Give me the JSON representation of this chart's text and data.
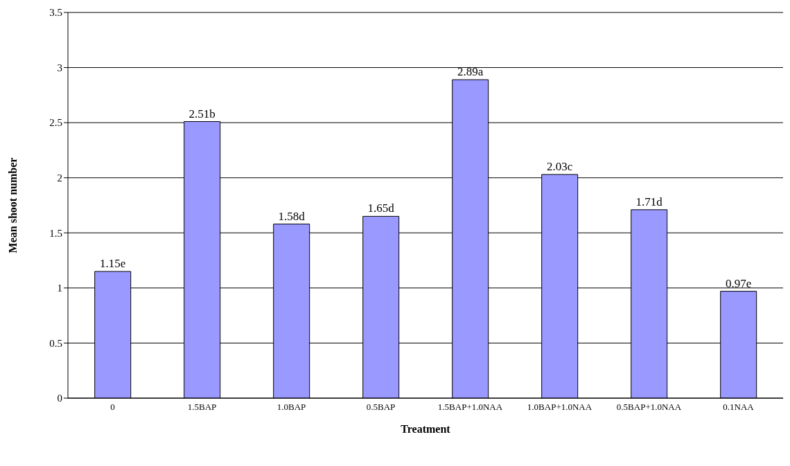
{
  "chart_data": {
    "type": "bar",
    "xlabel": "Treatment",
    "ylabel": "Mean shoot number",
    "categories": [
      "0",
      "1.5BAP",
      "1.0BAP",
      "0.5BAP",
      "1.5BAP+1.0NAA",
      "1.0BAP+1.0NAA",
      "0.5BAP+1.0NAA",
      "0.1NAA"
    ],
    "values": [
      1.15,
      2.51,
      1.58,
      1.65,
      2.89,
      2.03,
      1.71,
      0.97
    ],
    "value_labels": [
      "1.15e",
      "2.51b",
      "1.58d",
      "1.65d",
      "2.89a",
      "2.03c",
      "1.71d",
      "0.97e"
    ],
    "color": "#9999ff",
    "ylim": [
      0,
      3.5
    ],
    "yticks": [
      0,
      0.5,
      1,
      1.5,
      2,
      2.5,
      3,
      3.5
    ],
    "grid": "y"
  }
}
